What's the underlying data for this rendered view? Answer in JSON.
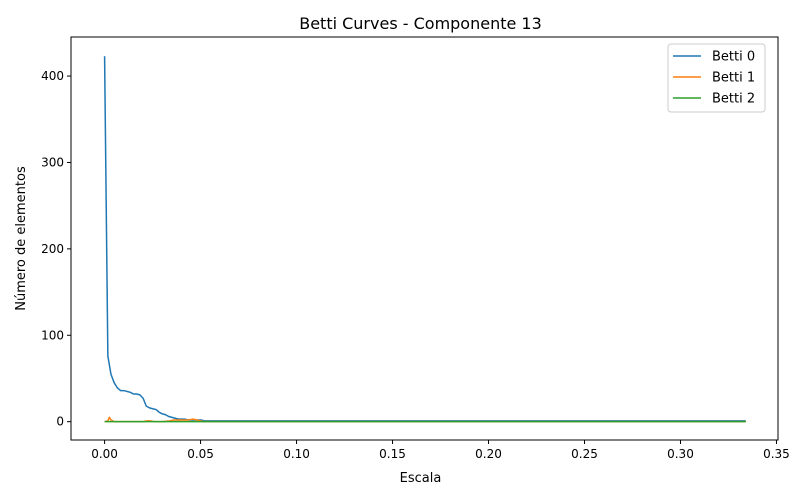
{
  "chart_data": {
    "type": "line",
    "title": "Betti Curves - Componente 13",
    "xlabel": "Escala",
    "ylabel": "Número de elementos",
    "xlim": [
      -0.0175,
      0.3508
    ],
    "ylim": [
      -21.2,
      445.2
    ],
    "xticks": [
      0.0,
      0.05,
      0.1,
      0.15,
      0.2,
      0.25,
      0.3,
      0.35
    ],
    "xtick_labels": [
      "0.00",
      "0.05",
      "0.10",
      "0.15",
      "0.20",
      "0.25",
      "0.30",
      "0.35"
    ],
    "yticks": [
      0,
      100,
      200,
      300,
      400
    ],
    "ytick_labels": [
      "0",
      "100",
      "200",
      "300",
      "400"
    ],
    "grid": false,
    "legend": "top-right",
    "colors": {
      "betti0": "#1f77b4",
      "betti1": "#ff7f0e",
      "betti2": "#2ca02c"
    },
    "series": [
      {
        "name": "Betti 0",
        "color": "#1f77b4",
        "x": [
          0.0,
          0.0017,
          0.0033,
          0.005,
          0.0067,
          0.0083,
          0.01,
          0.0117,
          0.0134,
          0.015,
          0.0167,
          0.0184,
          0.0201,
          0.0217,
          0.0234,
          0.0251,
          0.0268,
          0.0284,
          0.0301,
          0.0318,
          0.0334,
          0.0351,
          0.0368,
          0.0385,
          0.0401,
          0.0418,
          0.0435,
          0.0452,
          0.0468,
          0.0485,
          0.0502,
          0.0519,
          0.0535,
          0.0552,
          0.0569,
          0.06,
          0.1,
          0.15,
          0.2,
          0.25,
          0.3,
          0.334
        ],
        "y": [
          423,
          76,
          55,
          45,
          39,
          36,
          36,
          35,
          34,
          32,
          32,
          31,
          27,
          18,
          16,
          15,
          14,
          11,
          9,
          8,
          6,
          5,
          4,
          3,
          3,
          3,
          2,
          2,
          2,
          2,
          2,
          1,
          1,
          1,
          1,
          1,
          1,
          1,
          1,
          1,
          1,
          1
        ]
      },
      {
        "name": "Betti 1",
        "color": "#ff7f0e",
        "x": [
          0.0,
          0.0017,
          0.0025,
          0.0033,
          0.005,
          0.01,
          0.015,
          0.02,
          0.022,
          0.024,
          0.026,
          0.03,
          0.034,
          0.036,
          0.038,
          0.04,
          0.042,
          0.044,
          0.046,
          0.048,
          0.05,
          0.052,
          0.1,
          0.2,
          0.3,
          0.334
        ],
        "y": [
          0,
          1,
          5,
          2,
          0,
          0,
          0,
          0,
          1,
          1,
          0,
          0,
          1,
          2,
          2,
          2,
          2,
          2,
          3,
          2,
          1,
          0,
          0,
          0,
          0,
          0
        ]
      },
      {
        "name": "Betti 2",
        "color": "#2ca02c",
        "x": [
          0.0,
          0.01,
          0.02,
          0.03,
          0.04,
          0.05,
          0.1,
          0.2,
          0.3,
          0.334
        ],
        "y": [
          0,
          0,
          0,
          0,
          0,
          0,
          0,
          0,
          0,
          0
        ]
      }
    ]
  }
}
